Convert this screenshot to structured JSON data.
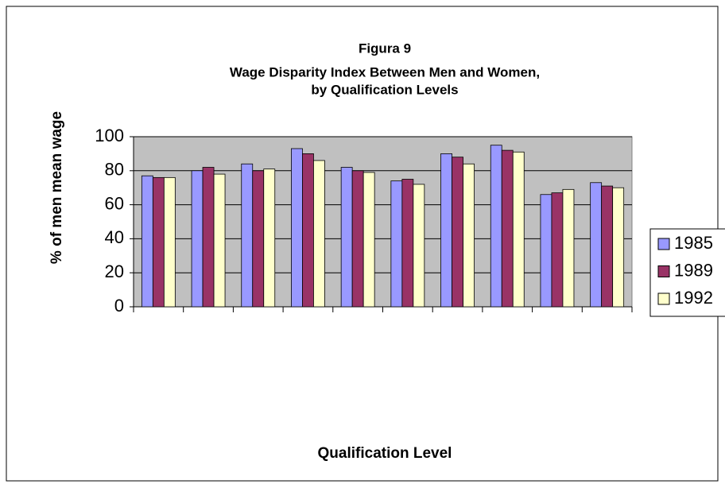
{
  "chart_data": {
    "type": "bar",
    "title": "Figura 9",
    "subtitle": [
      "Wage Disparity Index Between Men and Women,",
      "by Qualification Levels"
    ],
    "y_label": "% of men mean wage",
    "x_label": "Qualification Level",
    "categories": [
      null,
      null,
      null,
      null,
      null,
      null,
      null,
      null,
      null,
      null
    ],
    "series": [
      {
        "name": "1985",
        "color": "#9999ff",
        "values": [
          77,
          80,
          84,
          93,
          82,
          74,
          90,
          95,
          66,
          73
        ]
      },
      {
        "name": "1989",
        "color": "#993366",
        "values": [
          76,
          82,
          80,
          90,
          80,
          75,
          88,
          92,
          67,
          71
        ]
      },
      {
        "name": "1992",
        "color": "#ffffcc",
        "values": [
          76,
          78,
          81,
          86,
          79,
          72,
          84,
          91,
          69,
          70
        ]
      }
    ],
    "ylim": [
      0,
      100
    ],
    "yticks": [
      0,
      20,
      40,
      60,
      80,
      100
    ],
    "grid": true,
    "legend": "right"
  }
}
